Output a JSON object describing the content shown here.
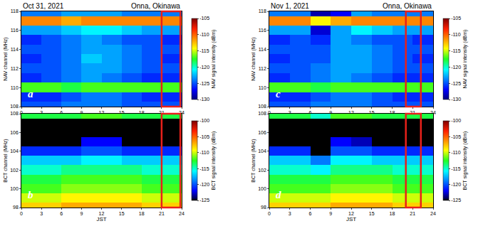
{
  "chart_data": [
    {
      "type": "heatmap",
      "title": "Oct 31, 2021",
      "location": "Onna, Okinawa",
      "label": "a",
      "ylabel": "NAV channel (MHz)",
      "x": [
        1.5,
        4.5,
        7.5,
        10.5,
        13.5,
        16.5,
        19.5,
        22.5
      ],
      "y": [
        108,
        109,
        110,
        111,
        112,
        113,
        114,
        115,
        116,
        117,
        118
      ],
      "z": [
        [
          -125,
          -125,
          -124,
          -124,
          -124,
          -125,
          -125,
          -125
        ],
        [
          -126,
          -126,
          -125,
          -124,
          -124,
          -125,
          -126,
          -126
        ],
        [
          -117,
          -117,
          -118,
          -117,
          -117,
          -117,
          -117,
          -117
        ],
        [
          -126,
          -125,
          -124,
          -123,
          -124,
          -125,
          -126,
          -126
        ],
        [
          -125,
          -125,
          -124,
          -123,
          -123,
          -124,
          -125,
          -125
        ],
        [
          -126,
          -125,
          -124,
          -122,
          -123,
          -124,
          -125,
          -126
        ],
        [
          -125,
          -125,
          -124,
          -123,
          -123,
          -124,
          -125,
          -125
        ],
        [
          -126,
          -125,
          -124,
          -123,
          -124,
          -125,
          -125,
          -126
        ],
        [
          -123,
          -123,
          -122,
          -121,
          -121,
          -122,
          -123,
          -123
        ],
        [
          -111,
          -111,
          -112,
          -111,
          -111,
          -111,
          -111,
          -111
        ],
        [
          -124,
          -124,
          -123,
          -123,
          -123,
          -124,
          -124,
          -124
        ]
      ],
      "xlim": [
        0,
        24
      ],
      "xticks": [
        0,
        3,
        6,
        9,
        12,
        15,
        18,
        21,
        24
      ],
      "ylim": [
        108,
        118
      ],
      "yticks": [
        108,
        110,
        112,
        114,
        116,
        118
      ],
      "colorbar": {
        "title": "NAV signal intensity (dBm)",
        "range": [
          -130,
          -105
        ],
        "ticks": [
          -130,
          -125,
          -120,
          -115,
          -110,
          -105
        ]
      },
      "highlight_x": [
        21,
        23.8
      ]
    },
    {
      "type": "heatmap",
      "label": "b",
      "ylabel": "BCT channel (MHz)",
      "xlabel": "JST",
      "x": [
        1.5,
        4.5,
        7.5,
        10.5,
        13.5,
        16.5,
        19.5,
        22.5
      ],
      "y": [
        98,
        99,
        100,
        101,
        102,
        103,
        104,
        105,
        106,
        107,
        108
      ],
      "z": [
        [
          -108,
          -108,
          -107,
          -107,
          -107,
          -107,
          -108,
          -108
        ],
        [
          -110,
          -110,
          -109,
          -109,
          -109,
          -109,
          -110,
          -110
        ],
        [
          -112,
          -112,
          -111,
          -111,
          -111,
          -111,
          -112,
          -112
        ],
        [
          -113,
          -113,
          -112,
          -112,
          -112,
          -112,
          -113,
          -113
        ],
        [
          -115,
          -115,
          -114,
          -114,
          -114,
          -114,
          -115,
          -115
        ],
        [
          -117,
          -117,
          -117,
          -116,
          -116,
          -117,
          -117,
          -117
        ],
        [
          -121,
          -121,
          -121,
          -120,
          -120,
          -121,
          -121,
          -121
        ],
        [
          -127,
          -127,
          -127,
          -122,
          -122,
          -127,
          -127,
          -127
        ],
        [
          -128,
          -128,
          -128,
          -127,
          -127,
          -128,
          -128,
          -128
        ],
        [
          -127,
          -127,
          -127,
          -126,
          -126,
          -127,
          -127,
          -127
        ],
        [
          -113,
          -113,
          -113,
          -112,
          -112,
          -113,
          -113,
          -113
        ]
      ],
      "xlim": [
        0,
        24
      ],
      "xticks": [
        0,
        3,
        6,
        9,
        12,
        15,
        18,
        21,
        24
      ],
      "ylim": [
        98,
        108
      ],
      "yticks": [
        98,
        100,
        102,
        104,
        106,
        108
      ],
      "colorbar": {
        "title": "BCT signal intensity (dBm)",
        "range": [
          -125,
          -100
        ],
        "ticks": [
          -125,
          -120,
          -115,
          -110,
          -105,
          -100
        ]
      },
      "highlight_x": [
        21,
        23.8
      ]
    },
    {
      "type": "heatmap",
      "title": "Nov 1, 2021",
      "location": "Onna, Okinawa",
      "label": "c",
      "ylabel": "NAV channel (MHz)",
      "x": [
        1.5,
        4.5,
        7.5,
        10.5,
        13.5,
        16.5,
        19.5,
        22.5
      ],
      "y": [
        108,
        109,
        110,
        111,
        112,
        113,
        114,
        115,
        116,
        117,
        118
      ],
      "z": [
        [
          -125,
          -125,
          -124,
          -124,
          -124,
          -125,
          -125,
          -125
        ],
        [
          -126,
          -126,
          -125,
          -124,
          -124,
          -125,
          -126,
          -126
        ],
        [
          -117,
          -117,
          -118,
          -117,
          -117,
          -117,
          -117,
          -117
        ],
        [
          -126,
          -125,
          -124,
          -123,
          -124,
          -125,
          -126,
          -126
        ],
        [
          -125,
          -125,
          -124,
          -123,
          -123,
          -124,
          -125,
          -125
        ],
        [
          -126,
          -125,
          -125,
          -123,
          -123,
          -124,
          -125,
          -126
        ],
        [
          -125,
          -125,
          -125,
          -123,
          -123,
          -124,
          -125,
          -125
        ],
        [
          -126,
          -125,
          -126,
          -123,
          -124,
          -125,
          -125,
          -126
        ],
        [
          -123,
          -123,
          -128,
          -123,
          -121,
          -122,
          -123,
          -123
        ],
        [
          -111,
          -111,
          -114,
          -112,
          -111,
          -111,
          -111,
          -111
        ],
        [
          -124,
          -124,
          -129,
          -127,
          -123,
          -124,
          -124,
          -124
        ]
      ],
      "xlim": [
        0,
        24
      ],
      "xticks": [
        0,
        3,
        6,
        9,
        12,
        15,
        18,
        21,
        24
      ],
      "ylim": [
        108,
        118
      ],
      "yticks": [
        108,
        110,
        112,
        114,
        116,
        118
      ],
      "colorbar": {
        "title": "NAV signal intensity (dBm)",
        "range": [
          -130,
          -105
        ],
        "ticks": [
          -130,
          -125,
          -120,
          -115,
          -110,
          -105
        ]
      },
      "highlight_x": [
        20,
        22.2
      ]
    },
    {
      "type": "heatmap",
      "label": "d",
      "ylabel": "BCT channel (MHz)",
      "xlabel": "JST",
      "x": [
        1.5,
        4.5,
        7.5,
        10.5,
        13.5,
        16.5,
        19.5,
        22.5
      ],
      "y": [
        98,
        99,
        100,
        101,
        102,
        103,
        104,
        105,
        106,
        107,
        108
      ],
      "z": [
        [
          -108,
          -108,
          -108,
          -107,
          -107,
          -107,
          -108,
          -108
        ],
        [
          -110,
          -110,
          -110,
          -109,
          -109,
          -109,
          -110,
          -110
        ],
        [
          -112,
          -112,
          -112,
          -111,
          -111,
          -111,
          -112,
          -112
        ],
        [
          -113,
          -113,
          -113,
          -112,
          -112,
          -112,
          -113,
          -113
        ],
        [
          -115,
          -115,
          -116,
          -114,
          -114,
          -114,
          -115,
          -115
        ],
        [
          -117,
          -117,
          -119,
          -116,
          -116,
          -117,
          -117,
          -117
        ],
        [
          -121,
          -121,
          -126,
          -120,
          -120,
          -121,
          -121,
          -121
        ],
        [
          -127,
          -127,
          -128,
          -122,
          -123,
          -127,
          -127,
          -127
        ],
        [
          -128,
          -128,
          -129,
          -127,
          -127,
          -128,
          -128,
          -128
        ],
        [
          -127,
          -127,
          -128,
          -126,
          -126,
          -127,
          -127,
          -127
        ],
        [
          -113,
          -113,
          -115,
          -112,
          -112,
          -113,
          -113,
          -113
        ]
      ],
      "xlim": [
        0,
        24
      ],
      "xticks": [
        0,
        3,
        6,
        9,
        12,
        15,
        18,
        21,
        24
      ],
      "ylim": [
        98,
        108
      ],
      "yticks": [
        98,
        100,
        102,
        104,
        106,
        108
      ],
      "colorbar": {
        "title": "BCT signal intensity (dBm)",
        "range": [
          -125,
          -100
        ],
        "ticks": [
          -125,
          -120,
          -115,
          -110,
          -105,
          -100
        ]
      },
      "highlight_x": [
        20,
        22.2
      ]
    }
  ]
}
